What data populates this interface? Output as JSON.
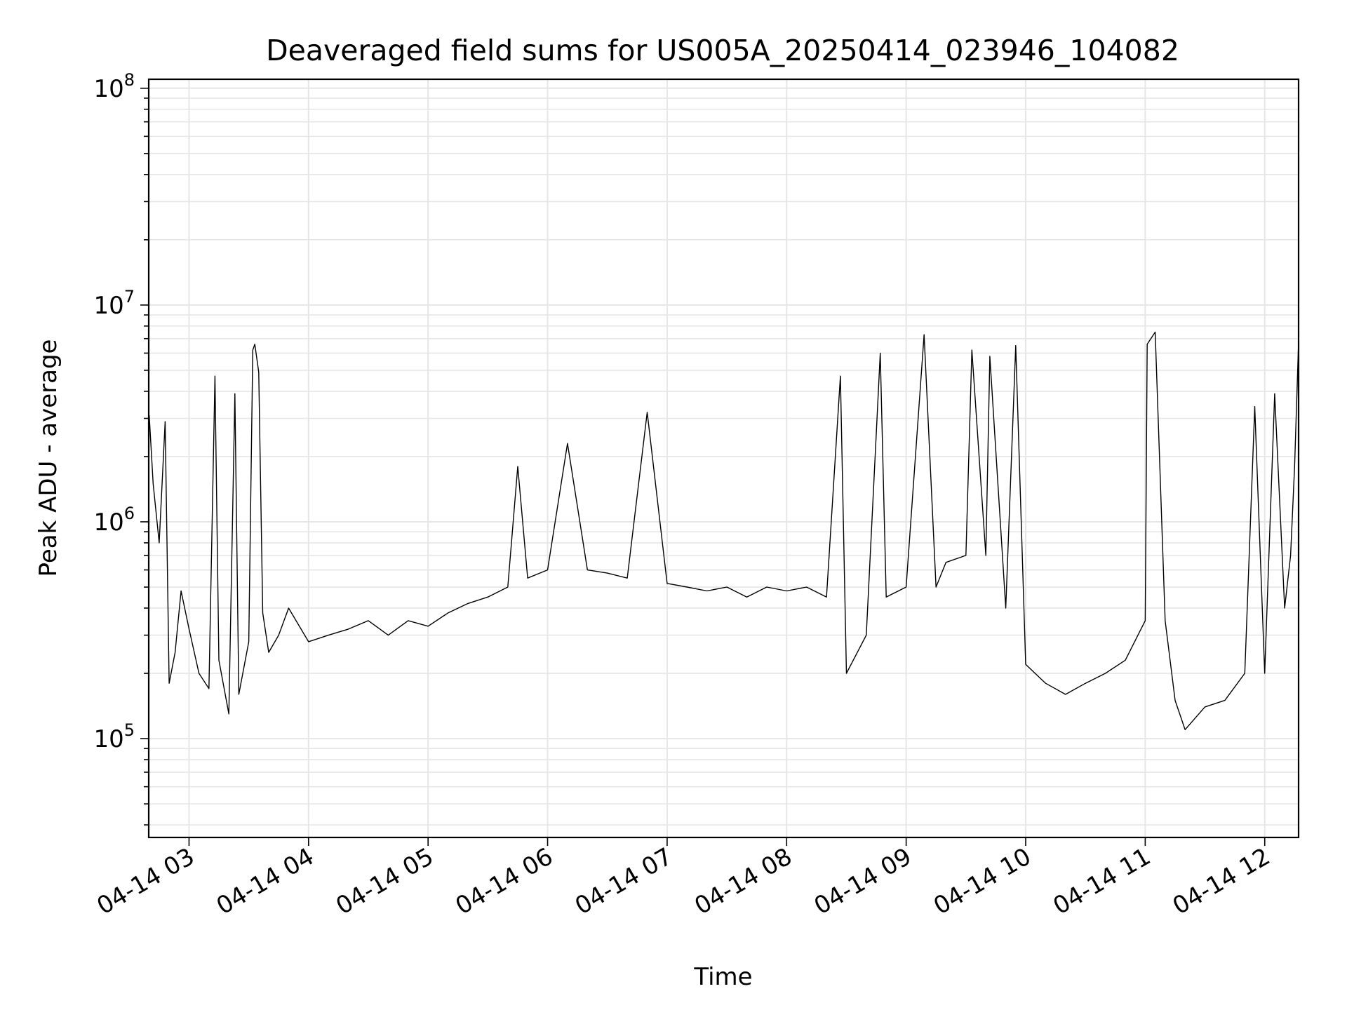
{
  "chart_data": {
    "type": "line",
    "title": "Deaveraged field sums for US005A_20250414_023946_104082",
    "xlabel": "Time",
    "ylabel": "Peak ADU - average",
    "yscale": "log",
    "ylim": [
      35000,
      110000000
    ],
    "xlim": [
      "2025-04-14 02:39:46",
      "2025-04-14 12:17:00"
    ],
    "grid": true,
    "legend": "none",
    "line_color": "#000000",
    "x_ticks": [
      {
        "value": "2025-04-14 03:00",
        "label": "04-14 03"
      },
      {
        "value": "2025-04-14 04:00",
        "label": "04-14 04"
      },
      {
        "value": "2025-04-14 05:00",
        "label": "04-14 05"
      },
      {
        "value": "2025-04-14 06:00",
        "label": "04-14 06"
      },
      {
        "value": "2025-04-14 07:00",
        "label": "04-14 07"
      },
      {
        "value": "2025-04-14 08:00",
        "label": "04-14 08"
      },
      {
        "value": "2025-04-14 09:00",
        "label": "04-14 09"
      },
      {
        "value": "2025-04-14 10:00",
        "label": "04-14 10"
      },
      {
        "value": "2025-04-14 11:00",
        "label": "04-14 11"
      },
      {
        "value": "2025-04-14 12:00",
        "label": "04-14 12"
      }
    ],
    "y_ticks": [
      {
        "value": 100000,
        "label_base": "10",
        "label_exp": "5"
      },
      {
        "value": 1000000,
        "label_base": "10",
        "label_exp": "6"
      },
      {
        "value": 10000000,
        "label_base": "10",
        "label_exp": "7"
      },
      {
        "value": 100000000,
        "label_base": "10",
        "label_exp": "8"
      }
    ],
    "series": [
      {
        "x": [
          "2025-04-14 02:40",
          "2025-04-14 02:42",
          "2025-04-14 02:45",
          "2025-04-14 02:48",
          "2025-04-14 02:50",
          "2025-04-14 02:53",
          "2025-04-14 02:56",
          "2025-04-14 03:00",
          "2025-04-14 03:05",
          "2025-04-14 03:10",
          "2025-04-14 03:13",
          "2025-04-14 03:15",
          "2025-04-14 03:20",
          "2025-04-14 03:23",
          "2025-04-14 03:25",
          "2025-04-14 03:30",
          "2025-04-14 03:32",
          "2025-04-14 03:33",
          "2025-04-14 03:35",
          "2025-04-14 03:37",
          "2025-04-14 03:40",
          "2025-04-14 03:45",
          "2025-04-14 03:50",
          "2025-04-14 04:00",
          "2025-04-14 04:10",
          "2025-04-14 04:20",
          "2025-04-14 04:30",
          "2025-04-14 04:40",
          "2025-04-14 04:50",
          "2025-04-14 05:00",
          "2025-04-14 05:10",
          "2025-04-14 05:20",
          "2025-04-14 05:30",
          "2025-04-14 05:40",
          "2025-04-14 05:45",
          "2025-04-14 05:50",
          "2025-04-14 06:00",
          "2025-04-14 06:10",
          "2025-04-14 06:20",
          "2025-04-14 06:30",
          "2025-04-14 06:40",
          "2025-04-14 06:50",
          "2025-04-14 07:00",
          "2025-04-14 07:10",
          "2025-04-14 07:20",
          "2025-04-14 07:30",
          "2025-04-14 07:40",
          "2025-04-14 07:50",
          "2025-04-14 08:00",
          "2025-04-14 08:10",
          "2025-04-14 08:20",
          "2025-04-14 08:27",
          "2025-04-14 08:30",
          "2025-04-14 08:40",
          "2025-04-14 08:47",
          "2025-04-14 08:50",
          "2025-04-14 09:00",
          "2025-04-14 09:09",
          "2025-04-14 09:15",
          "2025-04-14 09:20",
          "2025-04-14 09:30",
          "2025-04-14 09:33",
          "2025-04-14 09:40",
          "2025-04-14 09:42",
          "2025-04-14 09:50",
          "2025-04-14 09:55",
          "2025-04-14 10:00",
          "2025-04-14 10:10",
          "2025-04-14 10:20",
          "2025-04-14 10:30",
          "2025-04-14 10:40",
          "2025-04-14 10:50",
          "2025-04-14 11:00",
          "2025-04-14 11:01",
          "2025-04-14 11:05",
          "2025-04-14 11:10",
          "2025-04-14 11:15",
          "2025-04-14 11:20",
          "2025-04-14 11:30",
          "2025-04-14 11:40",
          "2025-04-14 11:50",
          "2025-04-14 11:55",
          "2025-04-14 12:00",
          "2025-04-14 12:05",
          "2025-04-14 12:10",
          "2025-04-14 12:13",
          "2025-04-14 12:15",
          "2025-04-14 12:17"
        ],
        "y": [
          3100000,
          1500000,
          800000,
          2900000,
          180000,
          250000,
          480000,
          320000,
          200000,
          170000,
          4700000,
          230000,
          130000,
          3900000,
          160000,
          280000,
          6200000,
          6600000,
          4900000,
          380000,
          250000,
          300000,
          400000,
          280000,
          300000,
          320000,
          350000,
          300000,
          350000,
          330000,
          380000,
          420000,
          450000,
          500000,
          1800000,
          550000,
          600000,
          2300000,
          600000,
          580000,
          550000,
          3200000,
          520000,
          500000,
          480000,
          500000,
          450000,
          500000,
          480000,
          500000,
          450000,
          4700000,
          200000,
          300000,
          6000000,
          450000,
          500000,
          7300000,
          500000,
          650000,
          700000,
          6200000,
          700000,
          5800000,
          400000,
          6500000,
          220000,
          180000,
          160000,
          180000,
          200000,
          230000,
          350000,
          6600000,
          7500000,
          350000,
          150000,
          110000,
          140000,
          150000,
          200000,
          3400000,
          200000,
          3900000,
          400000,
          700000,
          1800000,
          6800000
        ]
      }
    ]
  }
}
